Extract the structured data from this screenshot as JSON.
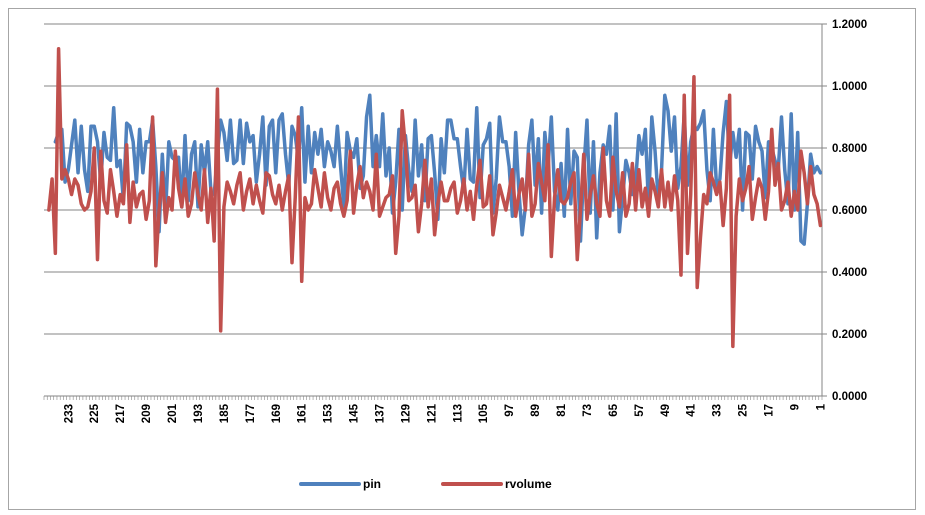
{
  "chart_data": {
    "type": "line",
    "title": "",
    "xlabel": "",
    "ylabel": "",
    "x_axis": {
      "reversed": true,
      "start": 1,
      "end": 240,
      "tick_labels": [
        233,
        225,
        217,
        209,
        201,
        193,
        185,
        177,
        169,
        161,
        153,
        145,
        137,
        129,
        121,
        113,
        105,
        97,
        89,
        81,
        73,
        65,
        57,
        49,
        41,
        33,
        25,
        17,
        9,
        1
      ]
    },
    "y_axis": {
      "position": "right",
      "ylim": [
        0,
        1.2
      ],
      "tick_labels": [
        "0.0000",
        "0.2000",
        "0.4000",
        "0.6000",
        "0.8000",
        "1.0000",
        "1.2000"
      ]
    },
    "grid": "horizontal major gridlines",
    "legend_position": "bottom",
    "series": [
      {
        "name": "pin",
        "color": "#4f81bd",
        "values": [
          0.72,
          0.74,
          0.72,
          0.78,
          0.62,
          0.49,
          0.5,
          0.85,
          0.6,
          0.91,
          0.62,
          0.73,
          0.9,
          0.73,
          0.76,
          0.8,
          0.82,
          0.64,
          0.79,
          0.82,
          0.87,
          0.7,
          0.84,
          0.85,
          0.6,
          0.86,
          0.77,
          0.85,
          0.74,
          0.95,
          0.85,
          0.7,
          0.67,
          0.86,
          0.63,
          0.73,
          0.92,
          0.88,
          0.86,
          0.87,
          0.82,
          0.68,
          0.91,
          0.74,
          0.67,
          0.9,
          0.79,
          0.92,
          0.97,
          0.73,
          0.63,
          0.79,
          0.9,
          0.61,
          0.86,
          0.78,
          0.84,
          0.69,
          0.65,
          0.72,
          0.76,
          0.64,
          0.53,
          0.91,
          0.6,
          0.87,
          0.78,
          0.81,
          0.72,
          0.51,
          0.82,
          0.59,
          0.89,
          0.73,
          0.5,
          0.77,
          0.79,
          0.62,
          0.86,
          0.58,
          0.75,
          0.6,
          0.66,
          0.9,
          0.74,
          0.85,
          0.59,
          0.83,
          0.68,
          0.89,
          0.81,
          0.61,
          0.52,
          0.66,
          0.85,
          0.58,
          0.74,
          0.82,
          0.82,
          0.9,
          0.7,
          0.59,
          0.88,
          0.83,
          0.81,
          0.64,
          0.93,
          0.69,
          0.7,
          0.86,
          0.66,
          0.74,
          0.83,
          0.83,
          0.89,
          0.89,
          0.72,
          0.83,
          0.57,
          0.72,
          0.84,
          0.83,
          0.63,
          0.81,
          0.71,
          0.89,
          0.66,
          0.73,
          0.84,
          0.6,
          0.86,
          0.69,
          0.59,
          0.8,
          0.71,
          0.91,
          0.74,
          0.84,
          0.74,
          0.97,
          0.9,
          0.71,
          0.67,
          0.83,
          0.77,
          0.79,
          0.85,
          0.61,
          0.74,
          0.87,
          0.74,
          0.79,
          0.82,
          0.74,
          0.86,
          0.78,
          0.85,
          0.72,
          0.87,
          0.69,
          0.93,
          0.76,
          0.84,
          0.87,
          0.68,
          0.78,
          0.91,
          0.89,
          0.72,
          0.89,
          0.87,
          0.68,
          0.9,
          0.78,
          0.69,
          0.84,
          0.82,
          0.88,
          0.75,
          0.89,
          0.76,
          0.75,
          0.89,
          0.76,
          0.85,
          0.89,
          0.78,
          0.65,
          0.66,
          0.82,
          0.72,
          0.81,
          0.61,
          0.82,
          0.78,
          0.63,
          0.84,
          0.61,
          0.77,
          0.76,
          0.77,
          0.82,
          0.59,
          0.78,
          0.53,
          0.74,
          0.89,
          0.82,
          0.82,
          0.72,
          0.86,
          0.69,
          0.82,
          0.87,
          0.88,
          0.63,
          0.76,
          0.74,
          0.93,
          0.76,
          0.77,
          0.85,
          0.69,
          0.82,
          0.87,
          0.87,
          0.66,
          0.73,
          0.87,
          0.72,
          0.89,
          0.81,
          0.73,
          0.69,
          0.86,
          0.85,
          0.82
        ]
      },
      {
        "name": "rvolume",
        "color": "#c0504d",
        "values": [
          0.55,
          0.62,
          0.65,
          0.74,
          0.62,
          0.72,
          0.79,
          0.6,
          0.66,
          0.58,
          0.69,
          0.63,
          0.6,
          0.75,
          0.68,
          0.86,
          0.66,
          0.57,
          0.67,
          0.7,
          0.64,
          0.57,
          0.74,
          0.67,
          0.63,
          0.7,
          0.58,
          0.16,
          0.97,
          0.67,
          0.55,
          0.69,
          0.65,
          0.69,
          0.72,
          0.62,
          0.65,
          0.51,
          0.35,
          1.03,
          0.65,
          0.46,
          0.97,
          0.39,
          0.63,
          0.71,
          0.6,
          0.69,
          0.61,
          0.73,
          0.61,
          0.66,
          0.7,
          0.58,
          0.67,
          0.61,
          0.73,
          0.6,
          0.75,
          0.62,
          0.58,
          0.72,
          0.61,
          0.66,
          0.77,
          0.58,
          0.63,
          0.8,
          0.58,
          0.62,
          0.71,
          0.65,
          0.57,
          0.78,
          0.6,
          0.44,
          0.72,
          0.69,
          0.64,
          0.62,
          0.63,
          0.73,
          0.64,
          0.45,
          0.81,
          0.63,
          0.69,
          0.75,
          0.62,
          0.58,
          0.78,
          0.6,
          0.7,
          0.65,
          0.58,
          0.73,
          0.66,
          0.6,
          0.64,
          0.68,
          0.59,
          0.52,
          0.71,
          0.62,
          0.61,
          0.76,
          0.68,
          0.57,
          0.66,
          0.6,
          0.7,
          0.63,
          0.59,
          0.69,
          0.67,
          0.63,
          0.63,
          0.69,
          0.62,
          0.52,
          0.7,
          0.61,
          0.76,
          0.62,
          0.53,
          0.68,
          0.64,
          0.63,
          0.8,
          0.92,
          0.58,
          0.46,
          0.71,
          0.65,
          0.64,
          0.61,
          0.58,
          0.78,
          0.6,
          0.66,
          0.69,
          0.64,
          0.74,
          0.68,
          0.59,
          0.79,
          0.63,
          0.58,
          0.62,
          0.69,
          0.67,
          0.6,
          0.64,
          0.72,
          0.61,
          0.67,
          0.73,
          0.62,
          0.6,
          0.64,
          0.37,
          0.9,
          0.64,
          0.43,
          0.71,
          0.66,
          0.6,
          0.68,
          0.62,
          0.65,
          0.71,
          0.72,
          0.59,
          0.63,
          0.68,
          0.62,
          0.7,
          0.66,
          0.6,
          0.72,
          0.68,
          0.62,
          0.66,
          0.69,
          0.61,
          0.21,
          0.99,
          0.5,
          0.67,
          0.56,
          0.73,
          0.6,
          0.65,
          0.72,
          0.62,
          0.58,
          0.7,
          0.61,
          0.67,
          0.79,
          0.6,
          0.64,
          0.56,
          0.72,
          0.6,
          0.42,
          0.9,
          0.63,
          0.57,
          0.66,
          0.65,
          0.61,
          0.69,
          0.56,
          0.81,
          0.62,
          0.65,
          0.58,
          0.66,
          0.73,
          0.59,
          0.63,
          0.79,
          0.44,
          0.8,
          0.66,
          0.61,
          0.6,
          0.62,
          0.68,
          0.7,
          0.65,
          0.7,
          0.73,
          0.7,
          1.12,
          0.46,
          0.7,
          0.6
        ]
      }
    ]
  }
}
